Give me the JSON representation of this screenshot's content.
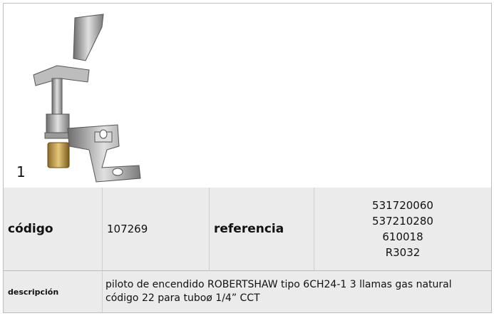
{
  "image": {
    "label": "1"
  },
  "table": {
    "rows": [
      [
        "código",
        "107269",
        "referencia",
        [
          "531720060",
          "537210280",
          "610018",
          "R3032"
        ]
      ],
      [
        "descripción",
        [
          "piloto de encendido  ROBERTSHAW tipo 6CH24-1 3 llamas gas natural",
          "código  22 para tuboø 1/4” CCT"
        ]
      ]
    ]
  }
}
